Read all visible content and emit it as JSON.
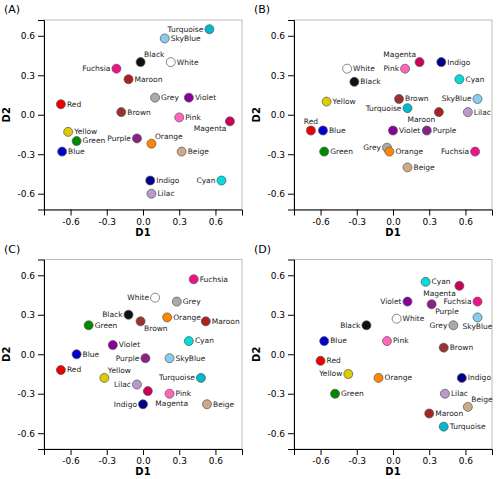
{
  "chart_data": [
    {
      "type": "scatter",
      "title": "(A)",
      "xlabel": "D1",
      "ylabel": "D2",
      "xlim": [
        -0.82,
        0.82
      ],
      "ylim": [
        -0.72,
        0.72
      ],
      "xticks": [
        -0.6,
        -0.3,
        {
          "value": 0,
          "label": "0.0"
        },
        0.3,
        0.6
      ],
      "yticks": [
        -0.6,
        -0.3,
        {
          "value": 0,
          "label": "0.0"
        },
        0.3,
        0.6
      ],
      "x": [
        0.55,
        0.18,
        0.23,
        -0.02,
        -0.22,
        -0.12,
        0.1,
        0.38,
        -0.68,
        -0.18,
        0.3,
        0.72,
        -0.62,
        -0.55,
        -0.05,
        0.07,
        0.32,
        -0.67,
        0.06,
        0.65,
        0.07
      ],
      "values": [
        0.65,
        0.58,
        0.4,
        0.4,
        0.35,
        0.27,
        0.13,
        0.13,
        0.08,
        0.02,
        -0.02,
        -0.05,
        -0.13,
        -0.2,
        -0.18,
        -0.22,
        -0.28,
        -0.28,
        -0.5,
        -0.5,
        -0.6
      ],
      "annotations": [
        "Turquoise",
        "SkyBlue",
        "White",
        "Black",
        "Fuchsia",
        "Maroon",
        "Grey",
        "Violet",
        "Red",
        "Brown",
        "Pink",
        "Magenta",
        "Yellow",
        "Green",
        "Purple",
        "Orange",
        "Beige",
        "Blue",
        "Indigo",
        "Cyan",
        "Lilac"
      ],
      "colors": [
        "#00bbcc",
        "#88ccee",
        "#ffffff",
        "#111111",
        "#ee1188",
        "#aa2222",
        "#aaaaaa",
        "#880099",
        "#ee0000",
        "#993333",
        "#ff66bb",
        "#cc0055",
        "#ddcc00",
        "#008800",
        "#882288",
        "#ff8800",
        "#ccaa88",
        "#0000cc",
        "#000088",
        "#00dddd",
        "#bb99cc"
      ]
    },
    {
      "type": "scatter",
      "title": "(B)",
      "xlabel": "D1",
      "ylabel": "D2",
      "xlim": [
        -0.82,
        0.82
      ],
      "ylim": [
        -0.72,
        0.72
      ],
      "xticks": [
        -0.6,
        -0.3,
        {
          "value": 0,
          "label": "0.0"
        },
        0.3,
        0.6
      ],
      "yticks": [
        -0.6,
        -0.3,
        {
          "value": 0,
          "label": "0.0"
        },
        0.3,
        0.6
      ],
      "x": [
        -0.38,
        -0.32,
        0.1,
        0.22,
        0.4,
        0.55,
        0.7,
        -0.55,
        0.05,
        0.12,
        0.38,
        0.62,
        -0.68,
        -0.58,
        -0.57,
        0.0,
        0.28,
        -0.05,
        -0.03,
        0.68,
        0.12
      ],
      "values": [
        0.35,
        0.25,
        0.35,
        0.4,
        0.4,
        0.27,
        0.12,
        0.1,
        0.12,
        0.05,
        0.02,
        0.02,
        -0.12,
        -0.12,
        -0.28,
        -0.12,
        -0.12,
        -0.25,
        -0.28,
        -0.28,
        -0.4
      ],
      "annotations": [
        "White",
        "Black",
        "Pink",
        "Magenta",
        "Indigo",
        "Cyan",
        "SkyBlue",
        "Yellow",
        "Brown",
        "Turquoise",
        "Maroon",
        "Lilac",
        "Red",
        "Blue",
        "Green",
        "Violet",
        "Purple",
        "Grey",
        "Orange",
        "Fuchsia",
        "Beige"
      ],
      "colors": [
        "#ffffff",
        "#111111",
        "#ff66bb",
        "#cc0055",
        "#000088",
        "#00dddd",
        "#88ccee",
        "#ddcc00",
        "#993333",
        "#00bbcc",
        "#aa2222",
        "#bb99cc",
        "#ee0000",
        "#0000cc",
        "#008800",
        "#880099",
        "#882288",
        "#aaaaaa",
        "#ff8800",
        "#ee1188",
        "#ccaa88"
      ]
    },
    {
      "type": "scatter",
      "title": "(C)",
      "xlabel": "D1",
      "ylabel": "D2",
      "xlim": [
        -0.82,
        0.82
      ],
      "ylim": [
        -0.72,
        0.72
      ],
      "xticks": [
        -0.6,
        -0.3,
        {
          "value": 0,
          "label": "0.0"
        },
        0.3,
        0.6
      ],
      "yticks": [
        -0.6,
        -0.3,
        {
          "value": 0,
          "label": "0.0"
        },
        0.3,
        0.6
      ],
      "x": [
        0.42,
        0.1,
        0.28,
        -0.12,
        0.2,
        -0.02,
        0.52,
        -0.45,
        -0.25,
        0.38,
        -0.55,
        0.02,
        0.22,
        -0.68,
        -0.32,
        0.48,
        -0.05,
        0.04,
        0.22,
        0.0,
        0.53
      ],
      "values": [
        0.57,
        0.43,
        0.4,
        0.3,
        0.28,
        0.25,
        0.25,
        0.22,
        0.07,
        0.1,
        0.0,
        -0.03,
        -0.03,
        -0.12,
        -0.18,
        -0.18,
        -0.23,
        -0.28,
        -0.3,
        -0.38,
        -0.38
      ],
      "annotations": [
        "Fuchsia",
        "White",
        "Grey",
        "Black",
        "Orange",
        "Brown",
        "Maroon",
        "Green",
        "Violet",
        "Cyan",
        "Blue",
        "Purple",
        "SkyBlue",
        "Red",
        "Yellow",
        "Turquoise",
        "Lilac",
        "Magenta",
        "Pink",
        "Indigo",
        "Beige"
      ],
      "colors": [
        "#ee1188",
        "#ffffff",
        "#aaaaaa",
        "#111111",
        "#ff8800",
        "#993333",
        "#aa2222",
        "#008800",
        "#880099",
        "#00dddd",
        "#0000cc",
        "#882288",
        "#88ccee",
        "#ee0000",
        "#ddcc00",
        "#00bbcc",
        "#bb99cc",
        "#cc0055",
        "#ff66bb",
        "#000088",
        "#ccaa88"
      ]
    },
    {
      "type": "scatter",
      "title": "(D)",
      "xlabel": "D1",
      "ylabel": "D2",
      "xlim": [
        -0.82,
        0.82
      ],
      "ylim": [
        -0.72,
        0.72
      ],
      "xticks": [
        -0.6,
        -0.3,
        {
          "value": 0,
          "label": "0.0"
        },
        0.3,
        0.6
      ],
      "yticks": [
        -0.6,
        -0.3,
        {
          "value": 0,
          "label": "0.0"
        },
        0.3,
        0.6
      ],
      "x": [
        0.27,
        0.55,
        0.7,
        0.12,
        0.32,
        0.7,
        0.03,
        0.5,
        -0.22,
        -0.57,
        -0.05,
        0.42,
        -0.6,
        -0.37,
        -0.12,
        0.57,
        -0.48,
        0.43,
        0.3,
        0.42,
        0.62
      ],
      "values": [
        0.55,
        0.52,
        0.4,
        0.4,
        0.38,
        0.28,
        0.27,
        0.22,
        0.22,
        0.1,
        0.1,
        0.05,
        -0.05,
        -0.15,
        -0.18,
        -0.18,
        -0.3,
        -0.3,
        -0.45,
        -0.55,
        -0.4
      ],
      "annotations": [
        "Cyan",
        "Magenta",
        "Fuchsia",
        "Violet",
        "Purple",
        "SkyBlue",
        "White",
        "Grey",
        "Black",
        "Blue",
        "Pink",
        "Brown",
        "Red",
        "Yellow",
        "Orange",
        "Indigo",
        "Green",
        "Lilac",
        "Maroon",
        "Turquoise",
        "Beige"
      ],
      "colors": [
        "#00dddd",
        "#cc0055",
        "#ee1188",
        "#880099",
        "#882288",
        "#88ccee",
        "#ffffff",
        "#aaaaaa",
        "#111111",
        "#0000cc",
        "#ff66bb",
        "#993333",
        "#ee0000",
        "#ddcc00",
        "#ff8800",
        "#000088",
        "#008800",
        "#bb99cc",
        "#aa2222",
        "#00bbcc",
        "#ccaa88"
      ]
    }
  ]
}
